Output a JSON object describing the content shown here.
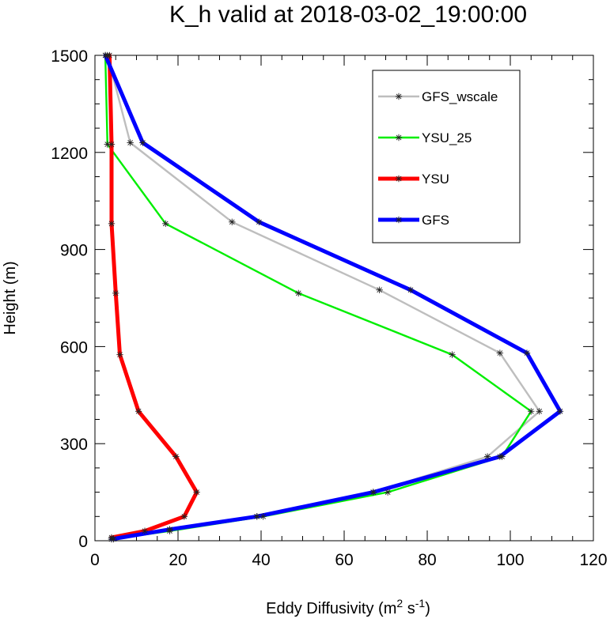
{
  "chart_data": {
    "type": "line",
    "title": "K_h valid at 2018-03-02_19:00:00",
    "xlabel": "Eddy Diffusivity (m",
    "xlabel_sup1": "2",
    "xlabel_mid": " s",
    "xlabel_sup2": "-1",
    "xlabel_end": ")",
    "ylabel": "Height (m)",
    "xlim": [
      0,
      120
    ],
    "ylim": [
      0,
      1500
    ],
    "xticks": [
      0,
      20,
      40,
      60,
      80,
      100,
      120
    ],
    "yticks": [
      0,
      300,
      600,
      900,
      1200,
      1500
    ],
    "xtick_labels": [
      "0",
      "20",
      "40",
      "60",
      "80",
      "100",
      "120"
    ],
    "ytick_labels": [
      "0",
      "300",
      "600",
      "900",
      "1200",
      "1500"
    ],
    "legend_position": "top-right",
    "marker": "asterisk",
    "series": [
      {
        "name": "GFS_wscale",
        "color": "#bebebe",
        "stroke": "thin",
        "points": [
          [
            4.5,
            5
          ],
          [
            18,
            35
          ],
          [
            39,
            75
          ],
          [
            67,
            150
          ],
          [
            94.5,
            260
          ],
          [
            107,
            400
          ],
          [
            97.5,
            580
          ],
          [
            68.5,
            775
          ],
          [
            33,
            985
          ],
          [
            8.5,
            1230
          ],
          [
            3,
            1500
          ]
        ]
      },
      {
        "name": "YSU_25",
        "color": "#00ee00",
        "stroke": "thin",
        "points": [
          [
            4,
            5
          ],
          [
            18,
            30
          ],
          [
            40.5,
            75
          ],
          [
            70.5,
            150
          ],
          [
            98,
            260
          ],
          [
            105,
            400
          ],
          [
            86,
            575
          ],
          [
            49,
            765
          ],
          [
            17,
            980
          ],
          [
            3,
            1225
          ],
          [
            2.5,
            1500
          ]
        ]
      },
      {
        "name": "YSU",
        "color": "#ff0000",
        "stroke": "thick",
        "points": [
          [
            4,
            10
          ],
          [
            12,
            30
          ],
          [
            21.5,
            75
          ],
          [
            24.5,
            150
          ],
          [
            19.5,
            260
          ],
          [
            10.5,
            400
          ],
          [
            6,
            575
          ],
          [
            5,
            765
          ],
          [
            4,
            980
          ],
          [
            4,
            1225
          ],
          [
            3.5,
            1500
          ]
        ]
      },
      {
        "name": "GFS",
        "color": "#0000ff",
        "stroke": "thick",
        "points": [
          [
            4,
            5
          ],
          [
            18,
            35
          ],
          [
            39,
            75
          ],
          [
            67,
            150
          ],
          [
            97.5,
            260
          ],
          [
            112,
            400
          ],
          [
            104,
            580
          ],
          [
            76,
            775
          ],
          [
            39.5,
            985
          ],
          [
            11.5,
            1230
          ],
          [
            2.5,
            1500
          ]
        ]
      }
    ]
  }
}
